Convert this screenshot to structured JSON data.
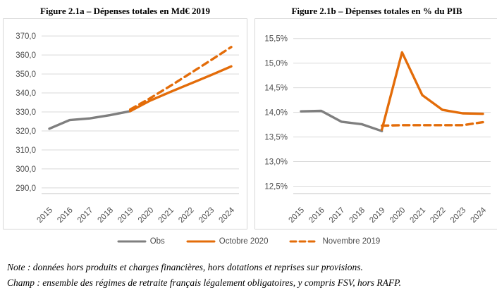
{
  "colors": {
    "obs_gray": "#7F7F7F",
    "orange": "#E36C09",
    "gridline": "#D9D9D9",
    "axis_line": "#C6C6C6",
    "tick_label": "#4D4D4D",
    "panel_border": "#D7D7D7"
  },
  "legend": {
    "position": "bottom-center-shared",
    "items": [
      {
        "label": "Obs",
        "color": "#7F7F7F",
        "dash": "solid"
      },
      {
        "label": "Octobre 2020",
        "color": "#E36C09",
        "dash": "solid"
      },
      {
        "label": "Novembre 2019",
        "color": "#E36C09",
        "dash": "dashed"
      }
    ]
  },
  "notes": [
    "Note : données hors produits et charges financières, hors dotations et reprises sur provisions.",
    "Champ : ensemble des régimes de retraite français légalement obligatoires, y compris FSV, hors RAFP."
  ],
  "chart_data": [
    {
      "type": "line",
      "title": "Figure 2.1a – Dépenses totales en Md€ 2019",
      "categories": [
        "2015",
        "2016",
        "2017",
        "2018",
        "2019",
        "2020",
        "2021",
        "2022",
        "2023",
        "2024"
      ],
      "ylim": [
        290,
        370
      ],
      "grid": true,
      "yticks": [
        {
          "value": 370,
          "label": "370,0"
        },
        {
          "value": 360,
          "label": "360,0"
        },
        {
          "value": 350,
          "label": "350,0"
        },
        {
          "value": 340,
          "label": "340,0"
        },
        {
          "value": 330,
          "label": "330,0"
        },
        {
          "value": 320,
          "label": "320,0"
        },
        {
          "value": 310,
          "label": "310,0"
        },
        {
          "value": 300,
          "label": "300,0"
        },
        {
          "value": 290,
          "label": "290,0"
        }
      ],
      "series": [
        {
          "name": "Obs",
          "color": "#7F7F7F",
          "dash": "solid",
          "x": [
            "2015",
            "2016",
            "2017",
            "2018",
            "2019"
          ],
          "values": [
            321.2,
            325.7,
            326.6,
            328.3,
            330.4
          ]
        },
        {
          "name": "Novembre 2019",
          "color": "#E36C09",
          "dash": "dashed",
          "x": [
            "2019",
            "2020",
            "2021",
            "2022",
            "2023",
            "2024"
          ],
          "values": [
            331.3,
            337.3,
            343.8,
            350.5,
            357.3,
            364.2
          ]
        },
        {
          "name": "Octobre 2020",
          "color": "#E36C09",
          "dash": "solid",
          "x": [
            "2019",
            "2020",
            "2021",
            "2022",
            "2023",
            "2024"
          ],
          "values": [
            330.4,
            336.0,
            340.6,
            345.0,
            349.4,
            354.0
          ]
        }
      ]
    },
    {
      "type": "line",
      "title": "Figure 2.1b – Dépenses totales en % du PIB",
      "categories": [
        "2015",
        "2016",
        "2017",
        "2018",
        "2019",
        "2020",
        "2021",
        "2022",
        "2023",
        "2024"
      ],
      "ylim": [
        12.5,
        15.5
      ],
      "grid": true,
      "yticks": [
        {
          "value": 15.5,
          "label": "15,5%"
        },
        {
          "value": 15.0,
          "label": "15,0%"
        },
        {
          "value": 14.5,
          "label": "14,5%"
        },
        {
          "value": 14.0,
          "label": "14,0%"
        },
        {
          "value": 13.5,
          "label": "13,5%"
        },
        {
          "value": 13.0,
          "label": "13,0%"
        },
        {
          "value": 12.5,
          "label": "12,5%"
        }
      ],
      "series": [
        {
          "name": "Obs",
          "color": "#7F7F7F",
          "dash": "solid",
          "x": [
            "2015",
            "2016",
            "2017",
            "2018",
            "2019"
          ],
          "values": [
            14.02,
            14.03,
            13.81,
            13.76,
            13.62
          ]
        },
        {
          "name": "Novembre 2019",
          "color": "#E36C09",
          "dash": "dashed",
          "x": [
            "2019",
            "2020",
            "2021",
            "2022",
            "2023",
            "2024"
          ],
          "values": [
            13.73,
            13.74,
            13.74,
            13.74,
            13.74,
            13.8
          ]
        },
        {
          "name": "Octobre 2020",
          "color": "#E36C09",
          "dash": "solid",
          "x": [
            "2019",
            "2020",
            "2021",
            "2022",
            "2023",
            "2024"
          ],
          "values": [
            13.65,
            15.22,
            14.35,
            14.05,
            13.98,
            13.97
          ]
        }
      ]
    }
  ]
}
